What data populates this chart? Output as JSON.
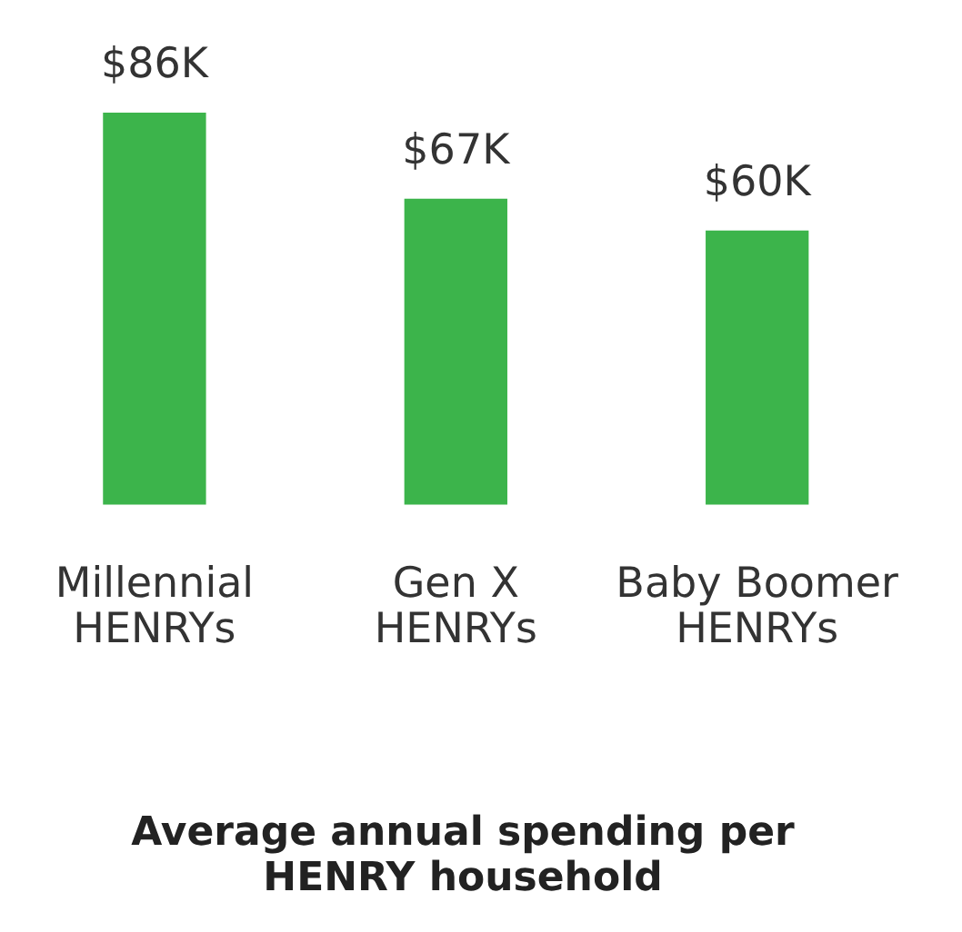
{
  "chart_data": {
    "type": "bar",
    "title": "Average annual spending per\nHENRY household",
    "categories": [
      "Millennial\nHENRYs",
      "Gen X\nHENRYs",
      "Baby Boomer\nHENRYs"
    ],
    "values": [
      86,
      67,
      60
    ],
    "value_labels": [
      "$86K",
      "$67K",
      "$60K"
    ],
    "color": "#3cb44b"
  }
}
